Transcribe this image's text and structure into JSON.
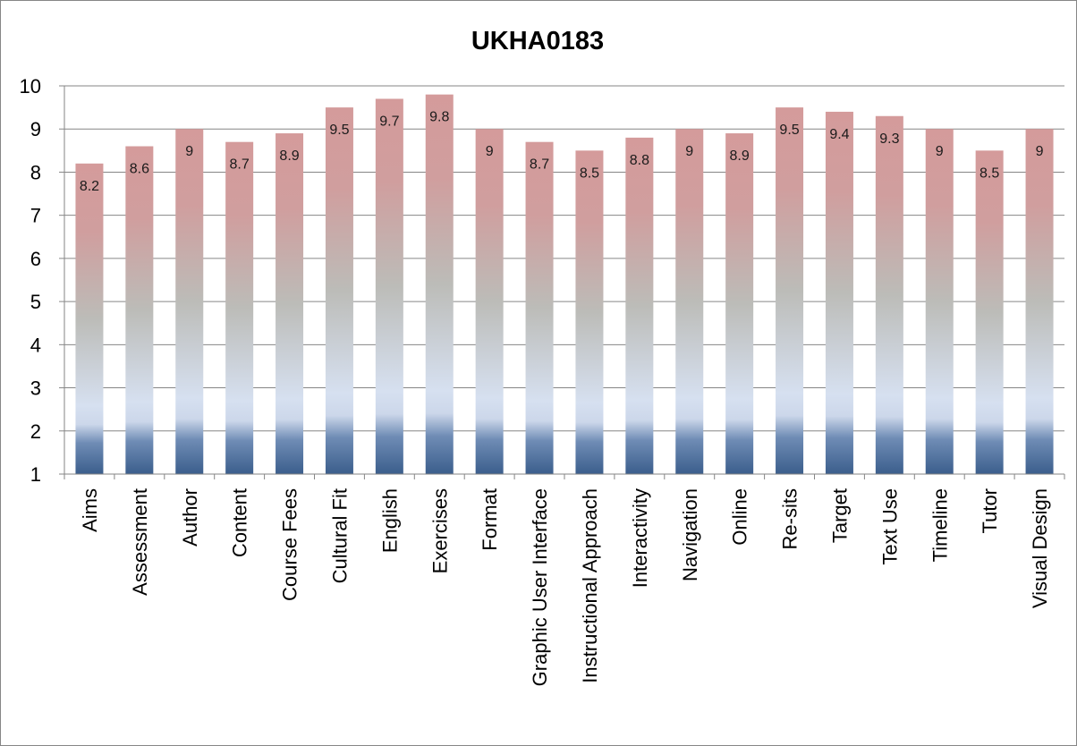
{
  "chart_data": {
    "type": "bar",
    "title": "UKHA0183",
    "categories": [
      "Aims",
      "Assessment",
      "Author",
      "Content",
      "Course Fees",
      "Cultural Fit",
      "English",
      "Exercises",
      "Format",
      "Graphic User Interface",
      "Instructional Approach",
      "Interactivity",
      "Navigation",
      "Online",
      "Re-sits",
      "Target",
      "Text Use",
      "Timeline",
      "Tutor",
      "Visual Design"
    ],
    "values": [
      8.2,
      8.6,
      9,
      8.7,
      8.9,
      9.5,
      9.7,
      9.8,
      9,
      8.7,
      8.5,
      8.8,
      9,
      8.9,
      9.5,
      9.4,
      9.3,
      9,
      8.5,
      9
    ],
    "data_labels": [
      "8.2",
      "8.6",
      "9",
      "8.7",
      "8.9",
      "9.5",
      "9.7",
      "9.8",
      "9",
      "8.7",
      "8.5",
      "8.8",
      "9",
      "8.9",
      "9.5",
      "9.4",
      "9.3",
      "9",
      "8.5",
      "9"
    ],
    "yticks": [
      "1",
      "2",
      "3",
      "4",
      "5",
      "6",
      "7",
      "8",
      "9",
      "10"
    ],
    "ylim": [
      1,
      10
    ],
    "grid": true,
    "legend": "none",
    "bar_gradient": [
      "#d49b9b",
      "#bdbdbd",
      "#d6e0f0",
      "#3b5e8c"
    ]
  }
}
